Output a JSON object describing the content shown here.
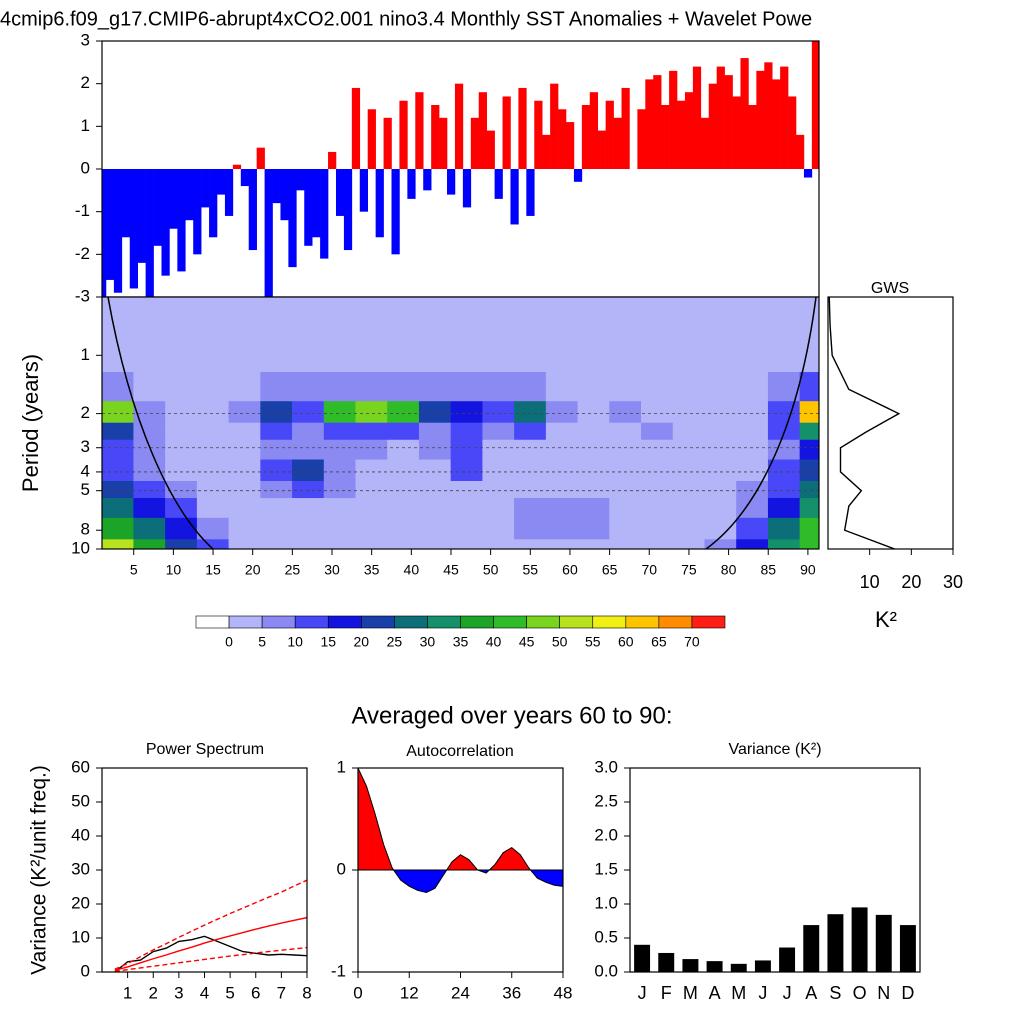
{
  "chart_data": [
    {
      "type": "bar",
      "title": "4cmip6.f09_g17.CMIP6-abrupt4xCO2.001 nino3.4 Monthly SST Anomalies + Wavelet Powe",
      "x": [
        1,
        2,
        3,
        4,
        5,
        6,
        7,
        8,
        9,
        10,
        11,
        12,
        13,
        14,
        15,
        16,
        17,
        18,
        19,
        20,
        21,
        22,
        23,
        24,
        25,
        26,
        27,
        28,
        29,
        30,
        31,
        32,
        33,
        34,
        35,
        36,
        37,
        38,
        39,
        40,
        41,
        42,
        43,
        44,
        45,
        46,
        47,
        48,
        49,
        50,
        51,
        52,
        53,
        54,
        55,
        56,
        57,
        58,
        59,
        60,
        61,
        62,
        63,
        64,
        65,
        66,
        67,
        68,
        69,
        70,
        71,
        72,
        73,
        74,
        75,
        76,
        77,
        78,
        79,
        80,
        81,
        82,
        83,
        84,
        85,
        86,
        87,
        88,
        89,
        90,
        91
      ],
      "values": [
        -3,
        -2.6,
        -2.9,
        -1.6,
        -2.8,
        -2.2,
        -3,
        -1.8,
        -2.5,
        -1.4,
        -2.4,
        -1.2,
        -2,
        -0.9,
        -1.6,
        -0.6,
        -1.1,
        0.1,
        -0.4,
        -1.9,
        0.5,
        -3,
        -0.8,
        -1.2,
        -2.3,
        -0.5,
        -1.8,
        -1.6,
        -2.1,
        0.4,
        -1.1,
        -1.9,
        1.9,
        -1.0,
        1.4,
        -1.6,
        1.2,
        -2.0,
        1.6,
        -0.7,
        1.8,
        -0.5,
        1.5,
        1.2,
        -0.6,
        2.0,
        -0.9,
        1.2,
        1.8,
        0.9,
        -0.7,
        1.7,
        -1.3,
        1.9,
        -1.1,
        1.6,
        0.8,
        2.0,
        1.4,
        1.1,
        -0.3,
        1.5,
        1.8,
        0.9,
        1.6,
        1.2,
        1.9,
        0.0,
        1.4,
        2.1,
        2.2,
        1.5,
        2.3,
        1.6,
        1.8,
        2.4,
        1.2,
        2.0,
        2.4,
        2.2,
        1.7,
        2.6,
        1.5,
        2.3,
        2.5,
        2.1,
        2.4,
        1.7,
        0.8,
        -0.2,
        3.0
      ],
      "pos_color": "#ff0000",
      "neg_color": "#0000ff",
      "xlim": [
        1,
        91.4
      ],
      "ylim": [
        -3,
        3
      ],
      "yticks": [
        -3,
        -2,
        -1,
        0,
        1,
        2,
        3
      ]
    },
    {
      "type": "heatmap",
      "ylabel": "Period (years)",
      "x": [
        3,
        7,
        11,
        15,
        19,
        23,
        27,
        31,
        35,
        39,
        43,
        47,
        51,
        55,
        59,
        63,
        67,
        71,
        75,
        79,
        83,
        87,
        91
      ],
      "periods": [
        0.5,
        0.7,
        1,
        1.5,
        2,
        2.5,
        3,
        4,
        5,
        6,
        8,
        10
      ],
      "z": [
        [
          2,
          2,
          2,
          2,
          2,
          2,
          2,
          2,
          2,
          2,
          2,
          2,
          2,
          2,
          2,
          2,
          2,
          2,
          2,
          2,
          2,
          2,
          2
        ],
        [
          2,
          2,
          2,
          2,
          2,
          2,
          2,
          2,
          2,
          2,
          2,
          2,
          2,
          2,
          2,
          2,
          2,
          2,
          2,
          2,
          2,
          2,
          2
        ],
        [
          2,
          2,
          2,
          2,
          3,
          2,
          2,
          2,
          2,
          2,
          2,
          2,
          2,
          2,
          2,
          2,
          2,
          2,
          2,
          2,
          2,
          2,
          3
        ],
        [
          6,
          3,
          2,
          2,
          3,
          7,
          6,
          8,
          8,
          8,
          6,
          9,
          6,
          6,
          3,
          2,
          2,
          2,
          2,
          2,
          3,
          6,
          12
        ],
        [
          45,
          8,
          3,
          2,
          6,
          22,
          10,
          40,
          46,
          42,
          20,
          18,
          14,
          26,
          6,
          3,
          7,
          2,
          2,
          2,
          3,
          12,
          60
        ],
        [
          20,
          6,
          3,
          2,
          4,
          12,
          8,
          12,
          12,
          10,
          9,
          14,
          8,
          10,
          4,
          3,
          4,
          6,
          2,
          2,
          3,
          10,
          30
        ],
        [
          10,
          5,
          3,
          2,
          3,
          6,
          6,
          6,
          5,
          4,
          6,
          14,
          4,
          3,
          2,
          2,
          2,
          2,
          2,
          2,
          3,
          8,
          18
        ],
        [
          12,
          6,
          3,
          2,
          3,
          12,
          20,
          8,
          3,
          2,
          3,
          10,
          3,
          2,
          2,
          2,
          2,
          2,
          2,
          2,
          4,
          10,
          20
        ],
        [
          22,
          14,
          6,
          3,
          3,
          8,
          10,
          5,
          3,
          2,
          2,
          3,
          2,
          3,
          4,
          3,
          2,
          2,
          2,
          2,
          5,
          14,
          28
        ],
        [
          28,
          18,
          10,
          4,
          3,
          3,
          3,
          3,
          2,
          2,
          2,
          2,
          3,
          5,
          6,
          5,
          3,
          2,
          2,
          2,
          8,
          18,
          34
        ],
        [
          36,
          26,
          16,
          7,
          3,
          2,
          2,
          2,
          2,
          2,
          2,
          2,
          3,
          5,
          6,
          5,
          3,
          2,
          2,
          3,
          12,
          26,
          40
        ],
        [
          50,
          36,
          24,
          10,
          4,
          2,
          2,
          2,
          2,
          2,
          2,
          2,
          2,
          3,
          3,
          3,
          2,
          2,
          2,
          5,
          16,
          32,
          44
        ]
      ],
      "levels": [
        0,
        5,
        10,
        15,
        20,
        25,
        30,
        35,
        40,
        45,
        50,
        55,
        60,
        65,
        70
      ],
      "colors": [
        "#ffffff",
        "#b4b4f8",
        "#8a8af2",
        "#4848f8",
        "#1414e0",
        "#1840a8",
        "#0c6e78",
        "#14906a",
        "#1ca428",
        "#30bc28",
        "#78d41e",
        "#b8e21e",
        "#f0f014",
        "#ffc400",
        "#ff8c00",
        "#ff1e14"
      ],
      "dashed_periods": [
        2,
        3,
        4,
        5
      ],
      "xlim": [
        1,
        91.4
      ],
      "ylim": [
        0.5,
        10
      ],
      "log_y": true,
      "y_reverse": true,
      "xticks": [
        5,
        10,
        15,
        20,
        25,
        30,
        35,
        40,
        45,
        50,
        55,
        60,
        65,
        70,
        75,
        80,
        85,
        90
      ],
      "yticks": [
        1,
        2,
        3,
        4,
        5,
        8,
        10
      ]
    },
    {
      "type": "line",
      "title": "GWS",
      "xlabel": "K²",
      "y": [
        0.5,
        0.7,
        1,
        1.5,
        2,
        2.5,
        3,
        4,
        5,
        6,
        8,
        10
      ],
      "series": [
        {
          "color": "#000000",
          "values": [
            0.3,
            0.5,
            1,
            5,
            17,
            9,
            3,
            3,
            8,
            5,
            4,
            16
          ]
        }
      ],
      "xlim": [
        0,
        30
      ],
      "ylim": [
        0.5,
        10
      ],
      "log_y": true,
      "y_reverse": true,
      "xticks": [
        10,
        20,
        30
      ]
    },
    {
      "type": "line",
      "section_title": "Averaged over years 60 to 90:",
      "title": "Power Spectrum",
      "ylabel": "Variance (K²/unit freq.)",
      "x": [
        0.5,
        1,
        1.5,
        2,
        2.5,
        3,
        3.5,
        4,
        4.5,
        5,
        5.5,
        6,
        6.5,
        7,
        7.5,
        8
      ],
      "series": [
        {
          "color": "#000000",
          "values": [
            0,
            3,
            3.5,
            6,
            7,
            9,
            9.5,
            10.5,
            9,
            7.5,
            6,
            5.5,
            5,
            5.2,
            5,
            4.8
          ],
          "dash": false
        },
        {
          "color": "#ff0000",
          "values": [
            0.5,
            1.5,
            2.7,
            3.9,
            5,
            6.2,
            7.3,
            8.5,
            9.6,
            10.6,
            11.6,
            12.6,
            13.5,
            14.4,
            15.2,
            16
          ],
          "dash": false
        },
        {
          "color": "#ff0000",
          "values": [
            0.8,
            2.5,
            4.5,
            6.5,
            8.3,
            10.2,
            12,
            13.8,
            15.5,
            17.2,
            18.8,
            20.4,
            22,
            23.5,
            25.3,
            27
          ],
          "dash": true
        },
        {
          "color": "#ff0000",
          "values": [
            0.2,
            0.7,
            1.2,
            1.7,
            2.2,
            2.7,
            3.2,
            3.7,
            4.2,
            4.7,
            5.1,
            5.6,
            6,
            6.4,
            6.8,
            7.2
          ],
          "dash": true
        }
      ],
      "xlim": [
        0,
        8
      ],
      "ylim": [
        0,
        60
      ],
      "xticks": [
        1,
        2,
        3,
        4,
        5,
        6,
        7,
        8
      ],
      "yticks": [
        0,
        10,
        20,
        30,
        40,
        50,
        60
      ]
    },
    {
      "type": "area",
      "title": "Autocorrelation",
      "x": [
        0,
        2,
        4,
        6,
        8,
        10,
        12,
        14,
        16,
        18,
        20,
        22,
        24,
        26,
        28,
        30,
        32,
        34,
        36,
        38,
        40,
        42,
        44,
        46,
        48
      ],
      "values": [
        1,
        0.82,
        0.55,
        0.25,
        0.02,
        -0.1,
        -0.16,
        -0.2,
        -0.22,
        -0.18,
        -0.05,
        0.08,
        0.15,
        0.1,
        0.0,
        -0.03,
        0.05,
        0.17,
        0.22,
        0.15,
        0.02,
        -0.08,
        -0.12,
        -0.15,
        -0.16
      ],
      "pos_color": "#ff0000",
      "neg_color": "#0000ff",
      "xlim": [
        0,
        48
      ],
      "ylim": [
        -1,
        1
      ],
      "xticks": [
        0,
        12,
        24,
        36,
        48
      ],
      "yticks": [
        -1,
        0,
        1
      ]
    },
    {
      "type": "bar",
      "title": "Variance (K²)",
      "categories": [
        "J",
        "F",
        "M",
        "A",
        "M",
        "J",
        "J",
        "A",
        "S",
        "O",
        "N",
        "D"
      ],
      "values": [
        0.4,
        0.28,
        0.19,
        0.16,
        0.12,
        0.17,
        0.36,
        0.69,
        0.85,
        0.95,
        0.84,
        0.69
      ],
      "color": "#000000",
      "ylim": [
        0,
        3
      ],
      "yticks": [
        {
          "value": 0,
          "label": "0.0"
        },
        0.5,
        {
          "value": 1,
          "label": "1.0"
        },
        1.5,
        {
          "value": 2,
          "label": "2.0"
        },
        2.5,
        {
          "value": 3,
          "label": "3.0"
        }
      ]
    }
  ]
}
